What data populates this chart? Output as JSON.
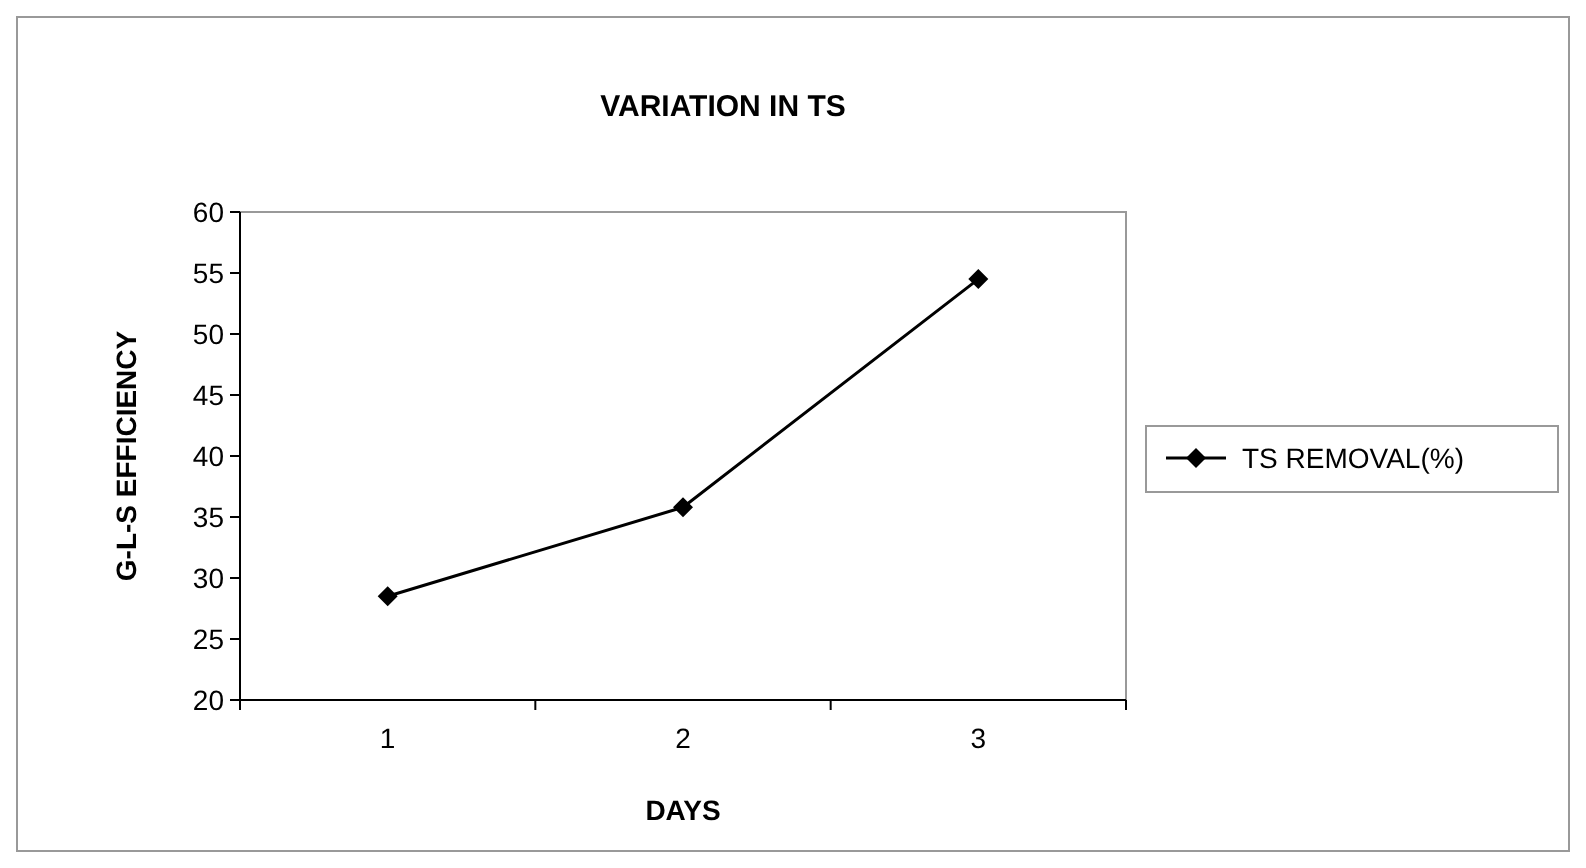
{
  "chart_data": {
    "type": "line",
    "title": "VARIATION IN TS",
    "xlabel": "DAYS",
    "ylabel": "G-L-S EFFICIENCY",
    "categories": [
      "1",
      "2",
      "3"
    ],
    "series": [
      {
        "name": "TS REMOVAL(%)",
        "color": "#000000",
        "values": [
          28.5,
          35.8,
          54.5
        ]
      }
    ],
    "ylim": [
      20,
      60
    ],
    "yticks": [
      20,
      25,
      30,
      35,
      40,
      45,
      50,
      55,
      60
    ],
    "grid": false,
    "legend": "right",
    "marker": "diamond",
    "line_style": "solid"
  }
}
